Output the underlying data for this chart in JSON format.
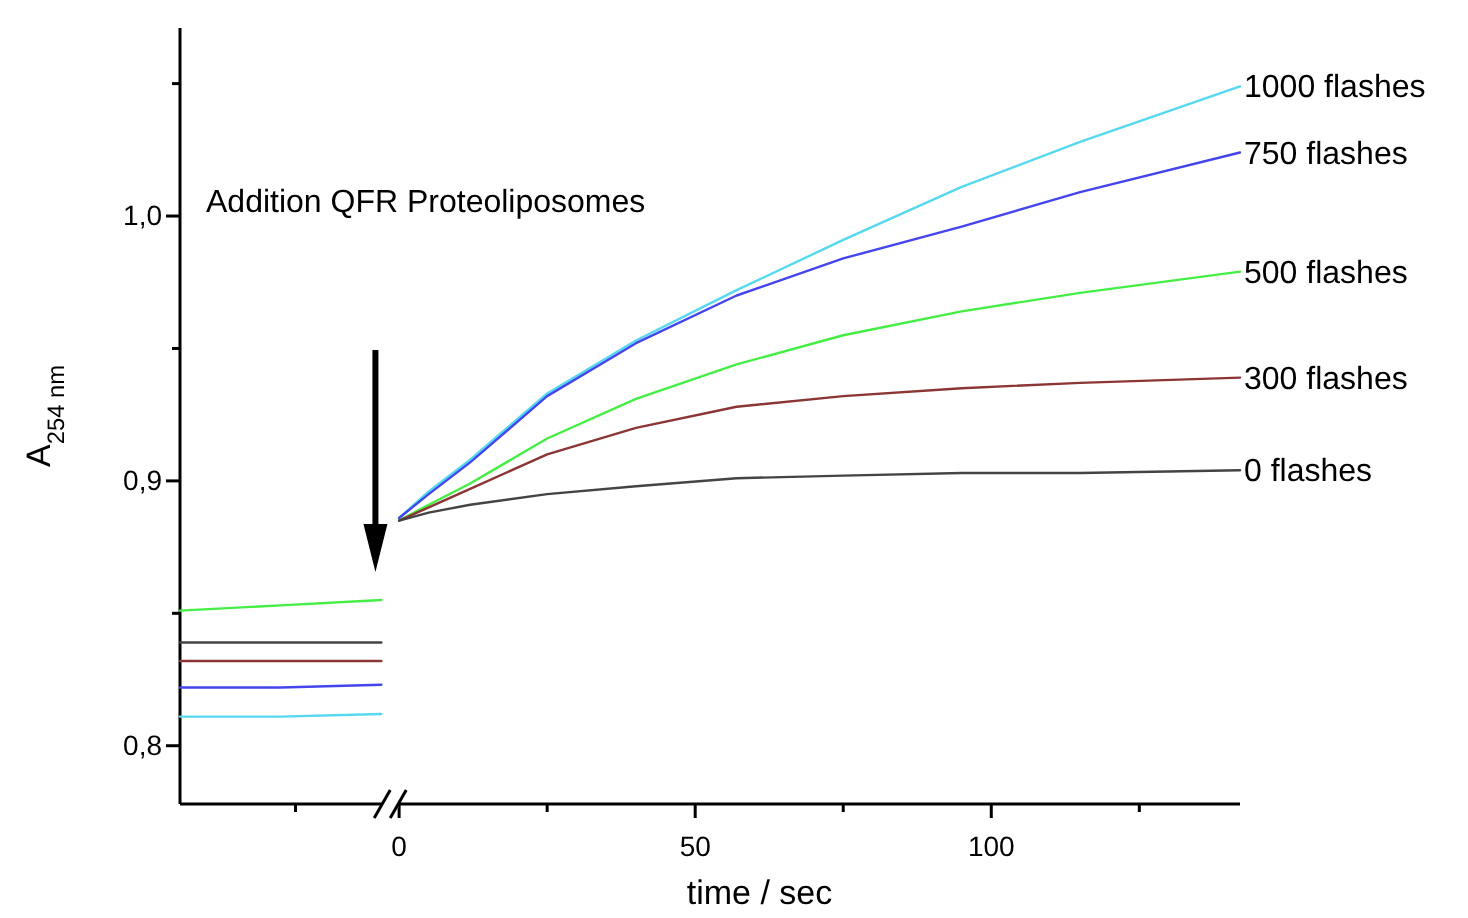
{
  "chart_data": {
    "type": "line",
    "xlabel": "time / sec",
    "ylabel": "A$_{254 nm}$",
    "annotations": [
      "Addition QFR Proteoliposomes"
    ],
    "xlim": [
      -37,
      142
    ],
    "ylim": [
      0.778,
      1.071
    ],
    "xticks": [
      {
        "value": -17.5,
        "label": null
      },
      0,
      {
        "value": 25,
        "label": null
      },
      50,
      {
        "value": 75,
        "label": null
      },
      100,
      {
        "value": 125,
        "label": null
      }
    ],
    "yticks": [
      {
        "value": 0.8,
        "label": "0,8"
      },
      {
        "value": 0.85,
        "label": null
      },
      {
        "value": 0.9,
        "label": "0,9"
      },
      {
        "value": 0.95,
        "label": null
      },
      {
        "value": 1.0,
        "label": "1,0"
      },
      {
        "value": 1.05,
        "label": null
      }
    ],
    "grid": false,
    "marker": "none",
    "line_style": "solid",
    "series": [
      {
        "name": "1000 flashes",
        "color": "#55d8f0",
        "x": [
          -37,
          -20,
          -3,
          -1,
          0,
          5,
          12,
          25,
          40,
          57,
          75,
          95,
          115,
          142
        ],
        "values": [
          0.811,
          0.811,
          0.812,
          null,
          0.886,
          0.896,
          0.908,
          0.933,
          0.953,
          0.972,
          0.991,
          1.011,
          1.028,
          1.049
        ]
      },
      {
        "name": "750 flashes",
        "color": "#4545ee",
        "x": [
          -37,
          -20,
          -3,
          -1,
          0,
          5,
          12,
          25,
          40,
          57,
          75,
          95,
          115,
          142
        ],
        "values": [
          0.822,
          0.822,
          0.823,
          null,
          0.886,
          0.895,
          0.907,
          0.932,
          0.952,
          0.97,
          0.984,
          0.996,
          1.009,
          1.024
        ]
      },
      {
        "name": "500 flashes",
        "color": "#44ee44",
        "x": [
          -37,
          -20,
          -3,
          -1,
          0,
          5,
          12,
          25,
          40,
          57,
          75,
          95,
          115,
          142
        ],
        "values": [
          0.851,
          0.853,
          0.855,
          null,
          0.885,
          0.891,
          0.899,
          0.916,
          0.931,
          0.944,
          0.955,
          0.964,
          0.971,
          0.979
        ]
      },
      {
        "name": "300 flashes",
        "color": "#8b3535",
        "x": [
          -37,
          -20,
          -3,
          -1,
          0,
          5,
          12,
          25,
          40,
          57,
          75,
          95,
          115,
          142
        ],
        "values": [
          0.832,
          0.832,
          0.832,
          null,
          0.885,
          0.89,
          0.897,
          0.91,
          0.92,
          0.928,
          0.932,
          0.935,
          0.937,
          0.939
        ]
      },
      {
        "name": "0 flashes",
        "color": "#444444",
        "x": [
          -37,
          -20,
          -3,
          -1,
          0,
          5,
          12,
          25,
          40,
          57,
          75,
          95,
          115,
          142
        ],
        "values": [
          0.839,
          0.839,
          0.839,
          null,
          0.885,
          0.888,
          0.891,
          0.895,
          0.898,
          0.901,
          0.902,
          0.903,
          0.903,
          0.904
        ]
      }
    ]
  }
}
